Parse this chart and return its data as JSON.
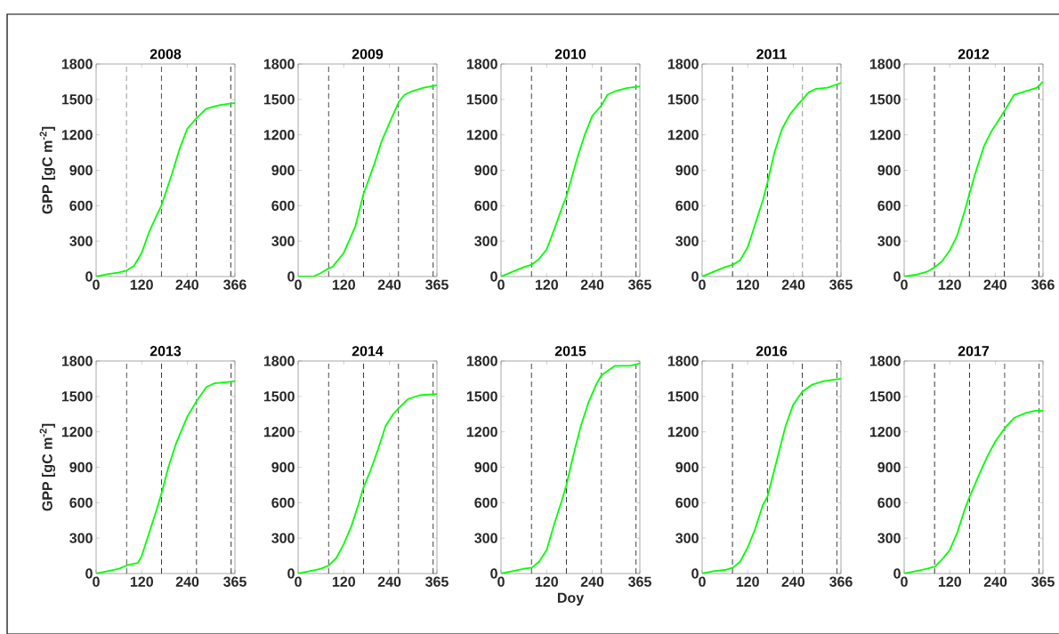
{
  "chart_data": [
    {
      "type": "line",
      "title": "2008",
      "ylabel": "GPP [gC m$^{-2}$]",
      "xlim": [
        0,
        366
      ],
      "xticks": [
        0,
        120,
        240,
        366
      ],
      "ylim": [
        0,
        1800
      ],
      "yticks": [
        0,
        300,
        600,
        900,
        1200,
        1500,
        1800
      ],
      "color": "#00ff00",
      "x": [
        0,
        30,
        60,
        80,
        100,
        120,
        140,
        160,
        172,
        200,
        220,
        240,
        264,
        290,
        310,
        330,
        366
      ],
      "values": [
        0,
        20,
        35,
        50,
        90,
        200,
        380,
        520,
        600,
        870,
        1080,
        1250,
        1340,
        1420,
        1440,
        1455,
        1470
      ],
      "ref_lines": [
        {
          "axis": "x",
          "value": 80,
          "color": "#000000",
          "line_style": "dashed"
        },
        {
          "axis": "x",
          "value": 172,
          "color": "#000000",
          "line_style": "dashed"
        },
        {
          "axis": "x",
          "value": 264,
          "color": "#000000",
          "line_style": "dashed"
        },
        {
          "axis": "x",
          "value": 355,
          "color": "#000000",
          "line_style": "dashed"
        }
      ]
    },
    {
      "type": "line",
      "title": "2009",
      "xlim": [
        0,
        365
      ],
      "xticks": [
        0,
        120,
        240,
        365
      ],
      "ylim": [
        0,
        1800
      ],
      "yticks": [
        0,
        300,
        600,
        900,
        1200,
        1500,
        1800
      ],
      "color": "#00ff00",
      "x": [
        0,
        40,
        60,
        80,
        90,
        120,
        150,
        172,
        200,
        220,
        240,
        265,
        280,
        300,
        330,
        365
      ],
      "values": [
        0,
        0,
        30,
        70,
        80,
        200,
        420,
        700,
        950,
        1150,
        1300,
        1480,
        1540,
        1570,
        1600,
        1620
      ],
      "ref_lines": [
        {
          "axis": "x",
          "value": 80,
          "color": "#000000",
          "line_style": "dashed"
        },
        {
          "axis": "x",
          "value": 172,
          "color": "#000000",
          "line_style": "dashed"
        },
        {
          "axis": "x",
          "value": 264,
          "color": "#000000",
          "line_style": "dashed"
        },
        {
          "axis": "x",
          "value": 355,
          "color": "#000000",
          "line_style": "dashed"
        }
      ]
    },
    {
      "type": "line",
      "title": "2010",
      "xlim": [
        0,
        365
      ],
      "xticks": [
        0,
        120,
        240,
        365
      ],
      "ylim": [
        0,
        1800
      ],
      "yticks": [
        0,
        300,
        600,
        900,
        1200,
        1500,
        1800
      ],
      "color": "#00ff00",
      "x": [
        0,
        30,
        60,
        81,
        100,
        120,
        140,
        160,
        172,
        200,
        220,
        240,
        264,
        280,
        300,
        330,
        365
      ],
      "values": [
        0,
        40,
        80,
        100,
        150,
        230,
        400,
        580,
        680,
        1000,
        1200,
        1360,
        1450,
        1540,
        1570,
        1595,
        1610
      ],
      "ref_lines": [
        {
          "axis": "x",
          "value": 80,
          "color": "#000000",
          "line_style": "dashed"
        },
        {
          "axis": "x",
          "value": 172,
          "color": "#000000",
          "line_style": "dashed"
        },
        {
          "axis": "x",
          "value": 264,
          "color": "#000000",
          "line_style": "dashed"
        },
        {
          "axis": "x",
          "value": 355,
          "color": "#000000",
          "line_style": "dashed"
        }
      ]
    },
    {
      "type": "line",
      "title": "2011",
      "xlim": [
        0,
        365
      ],
      "xticks": [
        0,
        120,
        240,
        365
      ],
      "ylim": [
        0,
        1800
      ],
      "yticks": [
        0,
        300,
        600,
        900,
        1200,
        1500,
        1800
      ],
      "color": "#00ff00",
      "x": [
        0,
        30,
        60,
        81,
        100,
        120,
        140,
        160,
        172,
        190,
        210,
        230,
        250,
        264,
        280,
        300,
        330,
        365
      ],
      "values": [
        0,
        40,
        80,
        100,
        140,
        250,
        450,
        650,
        800,
        1050,
        1250,
        1370,
        1450,
        1500,
        1560,
        1590,
        1600,
        1640
      ],
      "ref_lines": [
        {
          "axis": "x",
          "value": 80,
          "color": "#000000",
          "line_style": "dashed"
        },
        {
          "axis": "x",
          "value": 172,
          "color": "#000000",
          "line_style": "dashed"
        },
        {
          "axis": "x",
          "value": 264,
          "color": "#000000",
          "line_style": "dashed"
        },
        {
          "axis": "x",
          "value": 355,
          "color": "#000000",
          "line_style": "dashed"
        }
      ]
    },
    {
      "type": "line",
      "title": "2012",
      "xlim": [
        0,
        366
      ],
      "xticks": [
        0,
        120,
        240,
        366
      ],
      "ylim": [
        0,
        1800
      ],
      "yticks": [
        0,
        300,
        600,
        900,
        1200,
        1500,
        1800
      ],
      "color": "#00ff00",
      "x": [
        0,
        30,
        60,
        81,
        100,
        120,
        140,
        160,
        172,
        190,
        210,
        230,
        250,
        264,
        290,
        320,
        350,
        366
      ],
      "values": [
        0,
        15,
        40,
        80,
        130,
        220,
        350,
        560,
        700,
        900,
        1100,
        1230,
        1330,
        1400,
        1540,
        1570,
        1600,
        1650
      ],
      "ref_lines": [
        {
          "axis": "x",
          "value": 80,
          "color": "#000000",
          "line_style": "dashed"
        },
        {
          "axis": "x",
          "value": 172,
          "color": "#000000",
          "line_style": "dashed"
        },
        {
          "axis": "x",
          "value": 264,
          "color": "#000000",
          "line_style": "dashed"
        },
        {
          "axis": "x",
          "value": 355,
          "color": "#000000",
          "line_style": "dashed"
        }
      ]
    },
    {
      "type": "line",
      "title": "2013",
      "ylabel": "GPP [gC m$^{-2}$]",
      "xlim": [
        0,
        365
      ],
      "xticks": [
        0,
        120,
        240,
        365
      ],
      "ylim": [
        0,
        1800
      ],
      "yticks": [
        0,
        300,
        600,
        900,
        1200,
        1500,
        1800
      ],
      "color": "#00ff00",
      "x": [
        0,
        30,
        60,
        81,
        110,
        120,
        140,
        160,
        172,
        190,
        210,
        240,
        264,
        290,
        310,
        340,
        365
      ],
      "values": [
        0,
        20,
        40,
        70,
        90,
        150,
        350,
        550,
        680,
        900,
        1100,
        1330,
        1460,
        1580,
        1610,
        1620,
        1630
      ],
      "ref_lines": [
        {
          "axis": "x",
          "value": 80,
          "color": "#000000",
          "line_style": "dashed"
        },
        {
          "axis": "x",
          "value": 172,
          "color": "#000000",
          "line_style": "dashed"
        },
        {
          "axis": "x",
          "value": 264,
          "color": "#000000",
          "line_style": "dashed"
        },
        {
          "axis": "x",
          "value": 355,
          "color": "#000000",
          "line_style": "dashed"
        }
      ]
    },
    {
      "type": "line",
      "title": "2014",
      "xlim": [
        0,
        365
      ],
      "xticks": [
        0,
        120,
        240,
        365
      ],
      "ylim": [
        0,
        1800
      ],
      "yticks": [
        0,
        300,
        600,
        900,
        1200,
        1500,
        1800
      ],
      "color": "#00ff00",
      "x": [
        0,
        30,
        60,
        81,
        100,
        120,
        140,
        160,
        172,
        190,
        210,
        230,
        250,
        264,
        290,
        320,
        365
      ],
      "values": [
        0,
        20,
        40,
        70,
        130,
        250,
        400,
        600,
        730,
        870,
        1050,
        1250,
        1350,
        1400,
        1480,
        1510,
        1520
      ],
      "ref_lines": [
        {
          "axis": "x",
          "value": 80,
          "color": "#000000",
          "line_style": "dashed"
        },
        {
          "axis": "x",
          "value": 172,
          "color": "#000000",
          "line_style": "dashed"
        },
        {
          "axis": "x",
          "value": 264,
          "color": "#000000",
          "line_style": "dashed"
        },
        {
          "axis": "x",
          "value": 355,
          "color": "#000000",
          "line_style": "dashed"
        }
      ]
    },
    {
      "type": "line",
      "title": "2015",
      "xlabel": "Doy",
      "xlim": [
        0,
        365
      ],
      "xticks": [
        0,
        120,
        240,
        365
      ],
      "ylim": [
        0,
        1800
      ],
      "yticks": [
        0,
        300,
        600,
        900,
        1200,
        1500,
        1800
      ],
      "color": "#00ff00",
      "x": [
        0,
        30,
        60,
        81,
        100,
        120,
        140,
        160,
        172,
        190,
        210,
        230,
        250,
        264,
        300,
        340,
        365
      ],
      "values": [
        0,
        20,
        40,
        50,
        100,
        200,
        420,
        620,
        750,
        1000,
        1250,
        1450,
        1600,
        1680,
        1760,
        1760,
        1780
      ],
      "ref_lines": [
        {
          "axis": "x",
          "value": 80,
          "color": "#000000",
          "line_style": "dashed"
        },
        {
          "axis": "x",
          "value": 172,
          "color": "#000000",
          "line_style": "dashed"
        },
        {
          "axis": "x",
          "value": 264,
          "color": "#000000",
          "line_style": "dashed"
        },
        {
          "axis": "x",
          "value": 355,
          "color": "#000000",
          "line_style": "dashed"
        }
      ]
    },
    {
      "type": "line",
      "title": "2016",
      "xlim": [
        0,
        366
      ],
      "xticks": [
        0,
        120,
        240,
        366
      ],
      "ylim": [
        0,
        1800
      ],
      "yticks": [
        0,
        300,
        600,
        900,
        1200,
        1500,
        1800
      ],
      "color": "#00ff00",
      "x": [
        0,
        30,
        60,
        81,
        100,
        120,
        140,
        160,
        172,
        200,
        220,
        240,
        264,
        290,
        320,
        366
      ],
      "values": [
        0,
        20,
        30,
        50,
        100,
        220,
        380,
        580,
        650,
        1000,
        1250,
        1430,
        1540,
        1600,
        1630,
        1650
      ],
      "ref_lines": [
        {
          "axis": "x",
          "value": 80,
          "color": "#000000",
          "line_style": "dashed"
        },
        {
          "axis": "x",
          "value": 172,
          "color": "#000000",
          "line_style": "dashed"
        },
        {
          "axis": "x",
          "value": 264,
          "color": "#000000",
          "line_style": "dashed"
        },
        {
          "axis": "x",
          "value": 355,
          "color": "#000000",
          "line_style": "dashed"
        }
      ]
    },
    {
      "type": "line",
      "title": "2017",
      "xlim": [
        0,
        365
      ],
      "xticks": [
        0,
        120,
        240,
        365
      ],
      "ylim": [
        0,
        1800
      ],
      "yticks": [
        0,
        300,
        600,
        900,
        1200,
        1500,
        1800
      ],
      "color": "#00ff00",
      "x": [
        0,
        30,
        60,
        81,
        100,
        120,
        140,
        160,
        172,
        200,
        220,
        240,
        264,
        290,
        320,
        345,
        365
      ],
      "values": [
        0,
        20,
        40,
        60,
        120,
        200,
        350,
        550,
        650,
        860,
        1000,
        1120,
        1230,
        1320,
        1360,
        1380,
        1380
      ],
      "ref_lines": [
        {
          "axis": "x",
          "value": 80,
          "color": "#000000",
          "line_style": "dashed"
        },
        {
          "axis": "x",
          "value": 172,
          "color": "#000000",
          "line_style": "dashed"
        },
        {
          "axis": "x",
          "value": 264,
          "color": "#000000",
          "line_style": "dashed"
        },
        {
          "axis": "x",
          "value": 355,
          "color": "#000000",
          "line_style": "dashed"
        }
      ]
    }
  ]
}
